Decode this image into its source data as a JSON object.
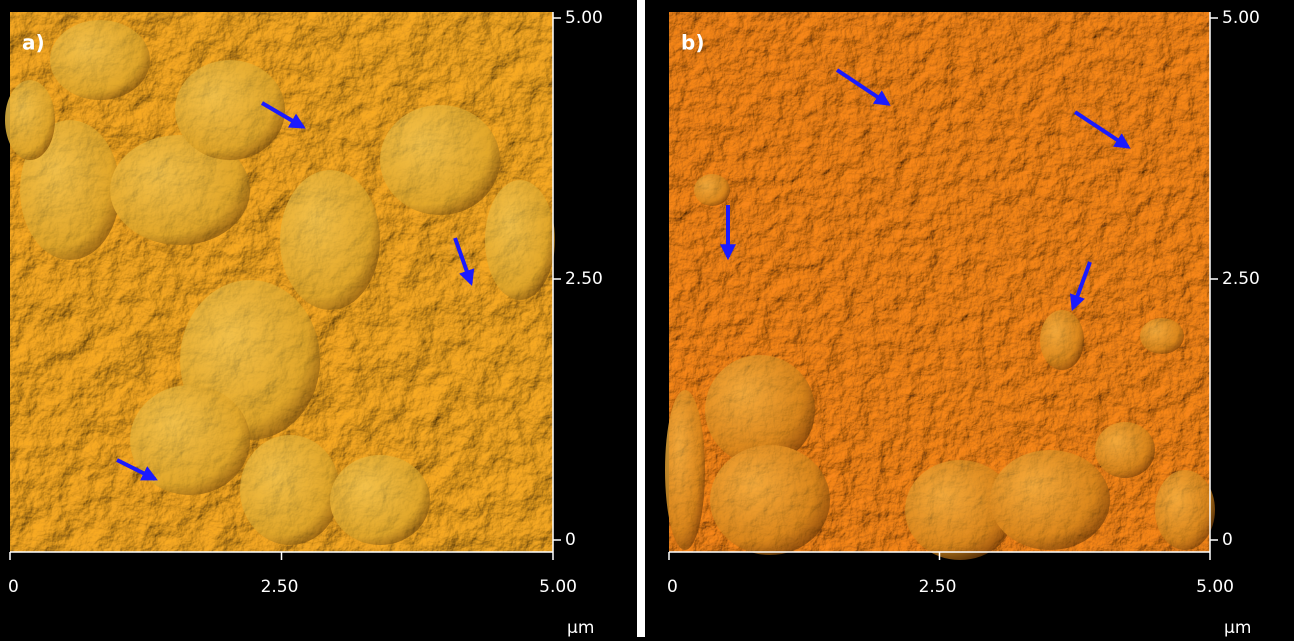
{
  "panels": [
    {
      "label": "a)",
      "xticks": [
        "0",
        "2.50",
        "5.00"
      ],
      "yticks": [
        "5.00",
        "2.50",
        "0"
      ],
      "unit": "µm"
    },
    {
      "label": "b)",
      "xticks": [
        "0",
        "2.50",
        "5.00"
      ],
      "yticks": [
        "5.00",
        "2.50",
        "0"
      ],
      "unit": "µm"
    }
  ]
}
